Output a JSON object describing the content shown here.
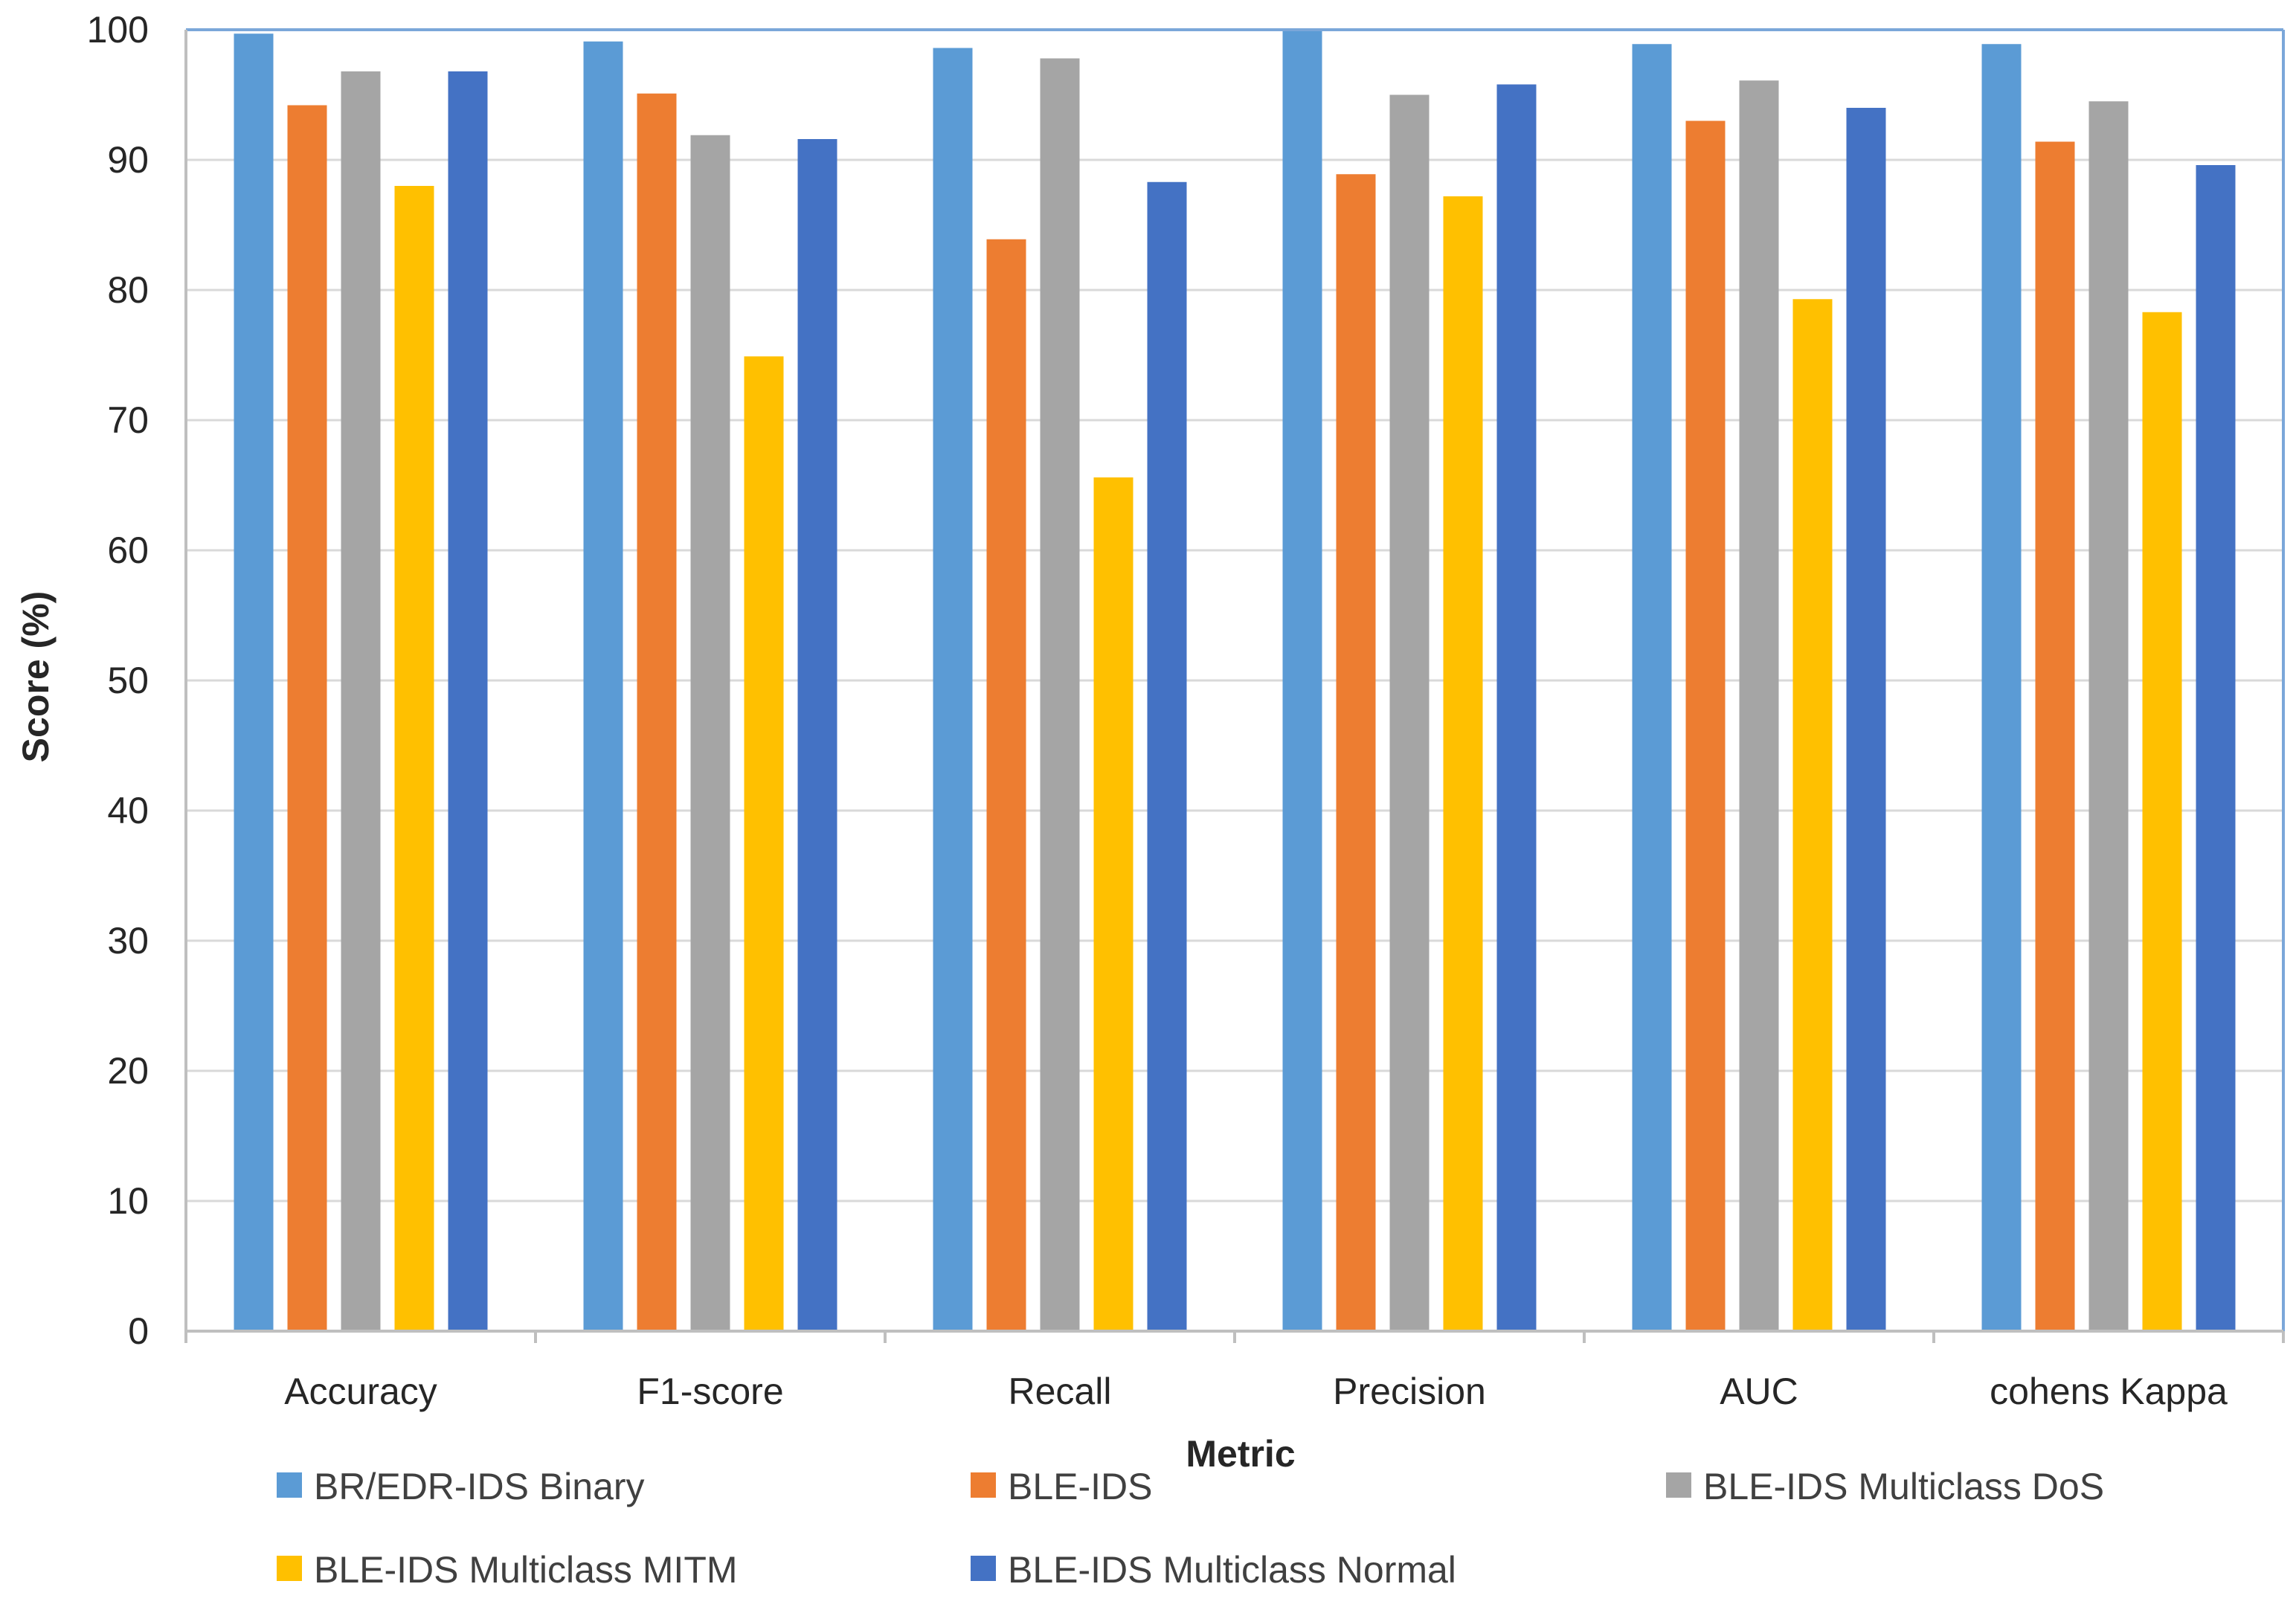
{
  "chart_data": {
    "type": "bar",
    "title": "",
    "xlabel": "Metric",
    "ylabel": "Score (%)",
    "ylim": [
      0,
      100
    ],
    "yticks": [
      0,
      10,
      20,
      30,
      40,
      50,
      60,
      70,
      80,
      90,
      100
    ],
    "grid": true,
    "legend_position": "bottom",
    "categories": [
      "Accuracy",
      "F1-score",
      "Recall",
      "Precision",
      "AUC",
      "cohens Kappa"
    ],
    "series": [
      {
        "name": "BR/EDR-IDS Binary",
        "color": "#5B9BD5",
        "values": [
          99.7,
          99.1,
          98.6,
          100,
          98.9,
          98.9
        ]
      },
      {
        "name": "BLE-IDS",
        "color": "#ED7D31",
        "values": [
          94.2,
          95.1,
          83.9,
          88.9,
          93.0,
          91.4
        ]
      },
      {
        "name": "BLE-IDS Multiclass DoS",
        "color": "#A5A5A5",
        "values": [
          96.8,
          91.9,
          97.8,
          95.0,
          96.1,
          94.5
        ]
      },
      {
        "name": "BLE-IDS Multiclass MITM",
        "color": "#FFC000",
        "values": [
          88.0,
          74.9,
          65.6,
          87.2,
          79.3,
          78.3
        ]
      },
      {
        "name": "BLE-IDS Multiclass Normal",
        "color": "#4472C4",
        "values": [
          96.8,
          91.6,
          88.3,
          95.8,
          94.0,
          89.6
        ]
      }
    ]
  }
}
